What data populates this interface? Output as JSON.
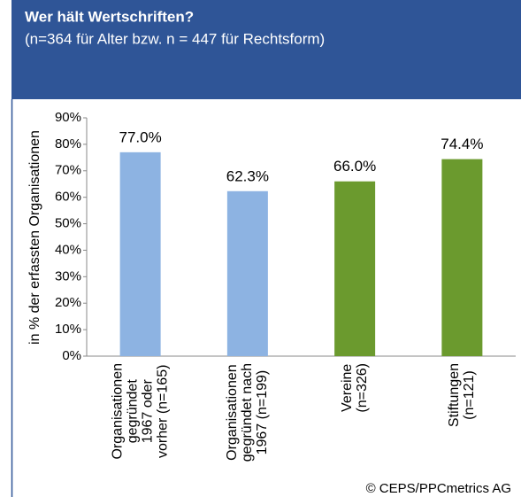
{
  "chart_data": {
    "type": "bar",
    "title": "Wer hält Wertschriften?",
    "subtitle": "(n=364 für Alter bzw. n = 447 für Rechtsform)",
    "y_label": "in % der erfassten Organisationen",
    "source": "© CEPS/PPCmetrics AG",
    "categories": [
      [
        "Organisationen",
        "gegründet",
        "1967 oder",
        "vorher (n=165)"
      ],
      [
        "Organisationen",
        "gegründet nach",
        "1967 (n=199)"
      ],
      [
        "Vereine",
        "(n=326)"
      ],
      [
        "Stiftungen",
        "(n=121)"
      ]
    ],
    "values": [
      77.0,
      62.3,
      66.0,
      74.4
    ],
    "value_labels": [
      "77.0%",
      "62.3%",
      "66.0%",
      "74.4%"
    ],
    "colors": [
      "#8db3e2",
      "#8db3e2",
      "#6b9a2e",
      "#6b9a2e"
    ],
    "ylim": [
      0,
      90
    ],
    "yticks": [
      {
        "value": 0,
        "label": "0%"
      },
      {
        "value": 10,
        "label": "10%"
      },
      {
        "value": 20,
        "label": "20%"
      },
      {
        "value": 30,
        "label": "30%"
      },
      {
        "value": 40,
        "label": "40%"
      },
      {
        "value": 50,
        "label": "50%"
      },
      {
        "value": 60,
        "label": "60%"
      },
      {
        "value": 70,
        "label": "70%"
      },
      {
        "value": 80,
        "label": "80%"
      },
      {
        "value": 90,
        "label": "90%"
      }
    ],
    "grid": false
  }
}
